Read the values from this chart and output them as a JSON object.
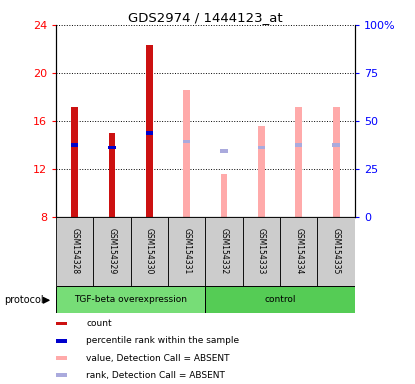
{
  "title": "GDS2974 / 1444123_at",
  "samples": [
    "GSM154328",
    "GSM154329",
    "GSM154330",
    "GSM154331",
    "GSM154332",
    "GSM154333",
    "GSM154334",
    "GSM154335"
  ],
  "ylim_left": [
    8,
    24
  ],
  "ylim_right": [
    0,
    100
  ],
  "yticks_left": [
    8,
    12,
    16,
    20,
    24
  ],
  "yticks_right": [
    0,
    25,
    50,
    75,
    100
  ],
  "ytick_labels_right": [
    "0",
    "25",
    "50",
    "75",
    "100%"
  ],
  "bar_bottom": 8,
  "count_bars": {
    "present": [
      true,
      true,
      true,
      false,
      false,
      false,
      false,
      false
    ],
    "values": [
      17.2,
      15.0,
      22.3,
      null,
      null,
      null,
      null,
      null
    ],
    "color": "#cc1111"
  },
  "absent_value_bars": {
    "present": [
      false,
      false,
      false,
      true,
      true,
      true,
      true,
      true
    ],
    "values": [
      null,
      null,
      null,
      18.6,
      11.6,
      15.6,
      17.2,
      17.2
    ],
    "color": "#ffaaaa"
  },
  "percentile_rank_markers": {
    "present": [
      true,
      true,
      true,
      false,
      false,
      false,
      false,
      false
    ],
    "values": [
      14.0,
      13.8,
      15.0,
      null,
      null,
      null,
      null,
      null
    ],
    "color": "#0000cc"
  },
  "absent_rank_markers": {
    "present": [
      false,
      false,
      false,
      true,
      true,
      true,
      true,
      true
    ],
    "values": [
      null,
      null,
      null,
      14.3,
      13.5,
      13.8,
      14.0,
      14.0
    ],
    "color": "#aaaadd"
  },
  "group_split": 4,
  "group1_label": "TGF-beta overexpression",
  "group2_label": "control",
  "group1_color": "#77dd77",
  "group2_color": "#55cc55",
  "protocol_label": "protocol",
  "legend_items": [
    {
      "label": "count",
      "color": "#cc1111"
    },
    {
      "label": "percentile rank within the sample",
      "color": "#0000cc"
    },
    {
      "label": "value, Detection Call = ABSENT",
      "color": "#ffaaaa"
    },
    {
      "label": "rank, Detection Call = ABSENT",
      "color": "#aaaadd"
    }
  ]
}
